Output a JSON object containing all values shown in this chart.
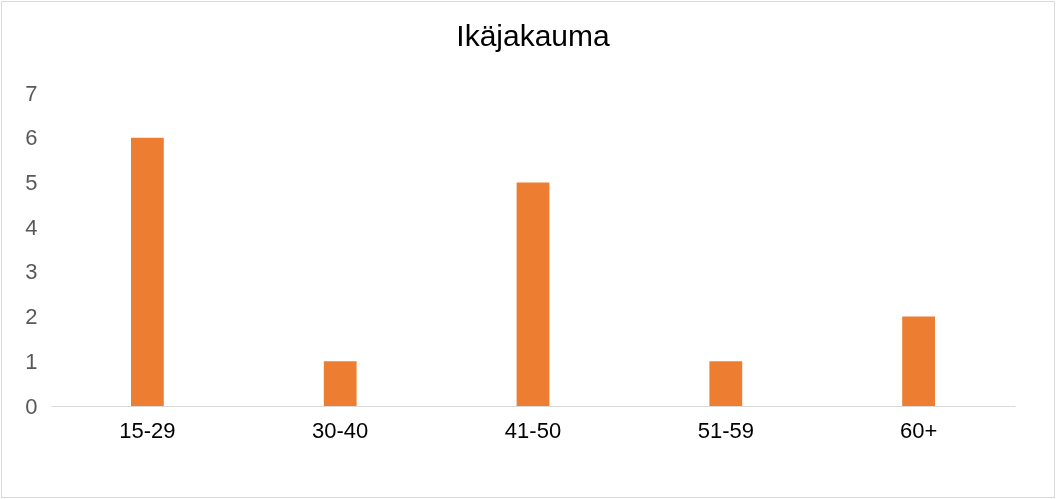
{
  "chart_data": {
    "type": "bar",
    "title": "Ikäjakauma",
    "categories": [
      "15-29",
      "30-40",
      "41-50",
      "51-59",
      "60+"
    ],
    "values": [
      6,
      1,
      5,
      1,
      2
    ],
    "color": "#ed7d31",
    "ylim": [
      0,
      7
    ],
    "yticks": [
      0,
      1,
      2,
      3,
      4,
      5,
      6,
      7
    ],
    "grid": false
  }
}
